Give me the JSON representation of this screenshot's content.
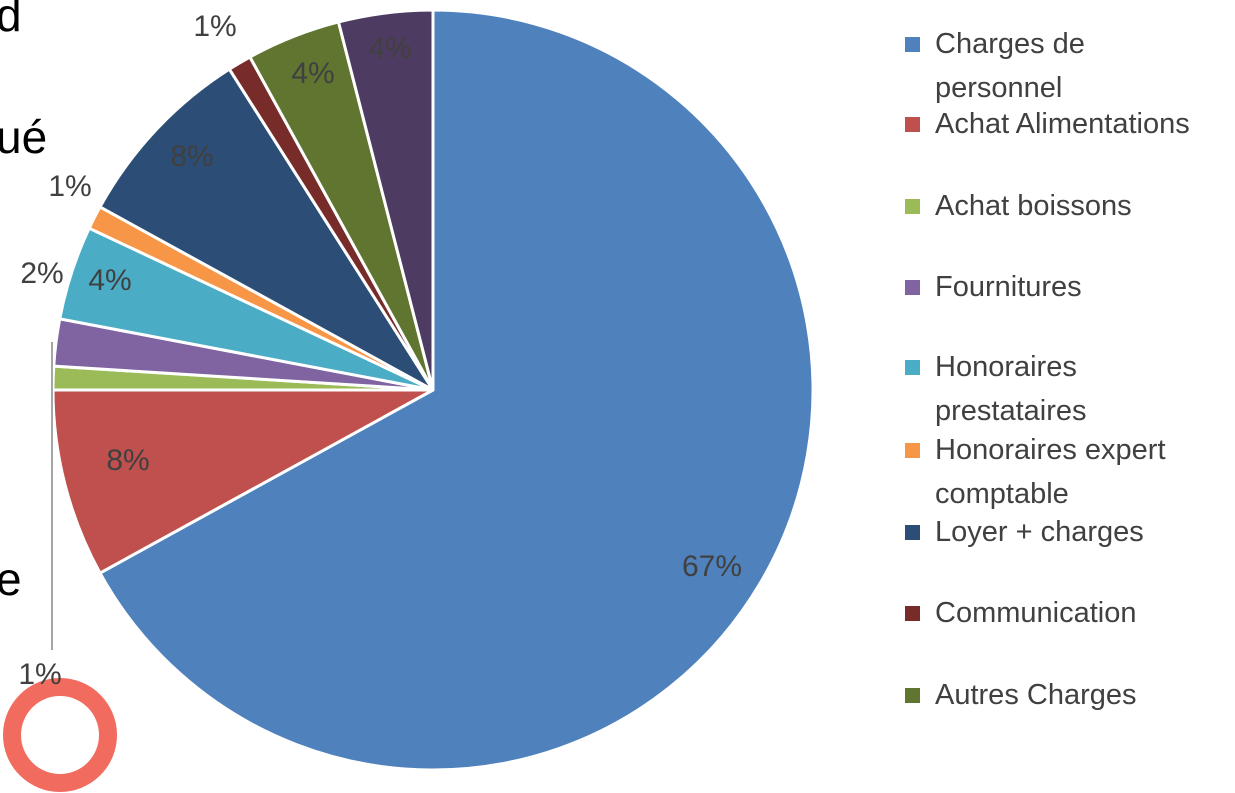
{
  "background_text": [
    "d",
    "ué",
    "e"
  ],
  "chart_data": {
    "type": "pie",
    "categories": [
      "Charges de personnel",
      "Achat Alimentations",
      "Achat boissons",
      "Fournitures",
      "Honoraires prestataires",
      "Honoraires expert comptable",
      "Loyer + charges",
      "Communication",
      "Autres Charges",
      null
    ],
    "values": [
      67,
      8,
      1,
      2,
      4,
      1,
      8,
      1,
      4,
      4
    ],
    "value_labels": [
      "67%",
      "8%",
      "1%",
      "2%",
      "4%",
      "1%",
      "8%",
      "1%",
      "4%",
      "4%"
    ],
    "colors": [
      "#4f81bd",
      "#c0504d",
      "#9bbb59",
      "#8064a2",
      "#4bacc6",
      "#f79646",
      "#2c4d75",
      "#772c2a",
      "#5f7530",
      "#4d3b62"
    ],
    "legend": "right"
  }
}
